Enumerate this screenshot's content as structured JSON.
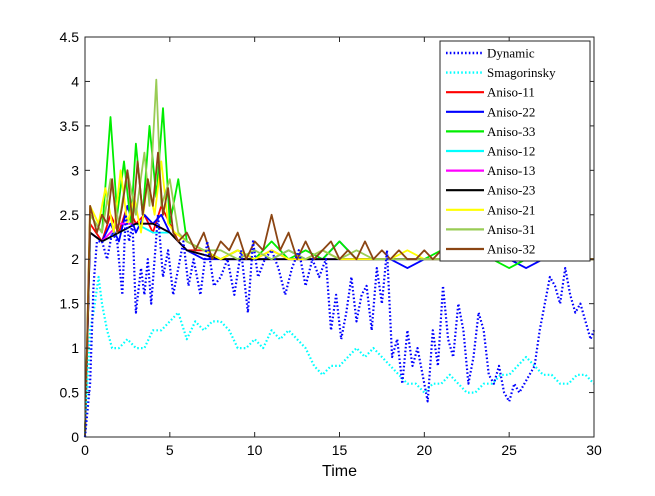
{
  "chart_data": {
    "type": "line",
    "title": "",
    "xlabel": "Time",
    "ylabel": "",
    "xlim": [
      0,
      30
    ],
    "ylim": [
      0,
      4.5
    ],
    "x_ticks": [
      "0",
      "5",
      "10",
      "15",
      "20",
      "25",
      "30"
    ],
    "y_ticks": [
      "0",
      "0.5",
      "1",
      "1.5",
      "2",
      "2.5",
      "3",
      "3.5",
      "4",
      "4.5"
    ],
    "grid": false,
    "legend_position": "top-right",
    "series": [
      {
        "name": "Dynamic",
        "color": "#0000ff",
        "style": "dotted",
        "x": [
          0,
          0.3,
          0.5,
          0.7,
          1,
          1.3,
          1.6,
          1.9,
          2.2,
          2.4,
          2.6,
          2.8,
          3,
          3.3,
          3.5,
          3.7,
          3.9,
          4.1,
          4.3,
          4.6,
          4.9,
          5.2,
          5.5,
          5.8,
          6.1,
          6.4,
          6.8,
          7.2,
          7.6,
          8,
          8.4,
          8.8,
          9.2,
          9.6,
          9.9,
          10.2,
          10.6,
          11,
          11.4,
          11.8,
          12.2,
          12.6,
          13,
          13.4,
          13.8,
          14.2,
          14.5,
          14.8,
          15.1,
          15.4,
          15.7,
          16,
          16.3,
          16.6,
          16.9,
          17.2,
          17.5,
          17.8,
          18.1,
          18.4,
          18.7,
          19,
          19.3,
          19.6,
          19.9,
          20.2,
          20.5,
          20.8,
          21.1,
          21.4,
          21.7,
          22,
          22.3,
          22.6,
          22.9,
          23.2,
          23.5,
          23.8,
          24.1,
          24.4,
          24.7,
          25,
          25.3,
          25.6,
          25.9,
          26.2,
          26.5,
          26.8,
          27.1,
          27.4,
          27.7,
          28,
          28.3,
          28.6,
          28.9,
          29.2,
          29.5,
          29.8,
          30
        ],
        "y": [
          0,
          0.6,
          1.7,
          2.2,
          2.2,
          2.0,
          2.3,
          2.2,
          1.6,
          2.5,
          2.2,
          2.4,
          1.4,
          1.9,
          1.6,
          2.0,
          1.5,
          2.0,
          2.5,
          1.8,
          2.1,
          1.6,
          1.9,
          2.2,
          1.7,
          2.0,
          1.6,
          2.2,
          1.7,
          1.8,
          2.0,
          1.6,
          2.1,
          1.4,
          2.2,
          1.8,
          2.0,
          2.1,
          1.9,
          1.6,
          1.9,
          2.1,
          1.7,
          2.0,
          1.8,
          2.0,
          1.2,
          1.6,
          1.1,
          1.4,
          1.8,
          1.3,
          1.6,
          1.7,
          1.2,
          1.9,
          1.5,
          2.1,
          0.9,
          1.1,
          0.6,
          1.2,
          0.8,
          1.0,
          0.7,
          0.4,
          1.2,
          0.8,
          1.7,
          1.1,
          0.9,
          1.5,
          1.2,
          0.6,
          0.9,
          1.4,
          1.2,
          0.7,
          0.6,
          0.8,
          0.5,
          0.4,
          0.6,
          0.5,
          0.6,
          0.7,
          0.8,
          1.2,
          1.5,
          1.8,
          1.7,
          1.5,
          1.9,
          1.6,
          1.4,
          1.5,
          1.3,
          1.1,
          1.2
        ]
      },
      {
        "name": "Smagorinsky",
        "color": "#00ffff",
        "style": "dotted",
        "x": [
          0,
          0.3,
          0.5,
          0.8,
          1,
          1.3,
          1.6,
          2,
          2.5,
          3,
          3.5,
          4,
          4.5,
          5,
          5.5,
          6,
          6.5,
          7,
          7.5,
          8,
          8.5,
          9,
          9.5,
          10,
          10.5,
          11,
          11.5,
          12,
          12.5,
          13,
          13.5,
          14,
          14.5,
          15,
          15.5,
          16,
          16.5,
          17,
          17.5,
          18,
          18.5,
          19,
          19.5,
          20,
          20.5,
          21,
          21.5,
          22,
          22.5,
          23,
          23.5,
          24,
          24.5,
          25,
          25.5,
          26,
          26.5,
          27,
          27.5,
          28,
          28.5,
          29,
          29.5,
          30
        ],
        "y": [
          0,
          1.2,
          1.4,
          1.8,
          1.5,
          1.2,
          1.0,
          1.0,
          1.1,
          1.0,
          1.0,
          1.2,
          1.2,
          1.3,
          1.4,
          1.1,
          1.3,
          1.2,
          1.3,
          1.3,
          1.2,
          1.0,
          1.0,
          1.1,
          1.0,
          1.2,
          1.1,
          1.2,
          1.1,
          1.0,
          0.8,
          0.7,
          0.8,
          0.8,
          0.9,
          1.0,
          0.9,
          1.0,
          0.9,
          0.8,
          0.7,
          0.6,
          0.6,
          0.5,
          0.6,
          0.6,
          0.7,
          0.6,
          0.5,
          0.5,
          0.6,
          0.6,
          0.7,
          0.7,
          0.8,
          0.9,
          0.8,
          0.7,
          0.7,
          0.6,
          0.6,
          0.7,
          0.7,
          0.6
        ]
      },
      {
        "name": "Aniso-11",
        "color": "#ff0000",
        "style": "solid",
        "x": [
          0,
          0.3,
          1,
          1.5,
          2,
          2.5,
          3,
          3.5,
          4,
          4.5,
          5,
          5.5,
          6,
          7,
          8,
          9,
          10,
          11,
          12,
          13,
          14,
          15,
          16,
          17,
          18,
          19,
          20,
          21,
          22,
          23,
          24,
          25,
          26,
          27,
          28,
          29,
          30
        ],
        "y": [
          0,
          2.4,
          2.2,
          2.5,
          2.3,
          2.6,
          2.4,
          2.5,
          2.3,
          2.6,
          2.4,
          2.2,
          2.1,
          2.1,
          2.0,
          2.1,
          2.0,
          2.1,
          2.0,
          2.0,
          2.1,
          2.0,
          2.0,
          2.0,
          2.0,
          2.0,
          2.0,
          2.0,
          2.0,
          2.0,
          2.0,
          2.0,
          2.0,
          2.0,
          2.0,
          2.0,
          2.0
        ]
      },
      {
        "name": "Aniso-22",
        "color": "#0000ff",
        "style": "solid",
        "x": [
          0,
          0.3,
          1,
          1.5,
          2,
          2.5,
          3,
          3.5,
          4,
          4.5,
          5,
          5.5,
          6,
          7,
          8,
          9,
          10,
          11,
          12,
          13,
          14,
          15,
          16,
          17,
          18,
          19,
          20,
          21,
          22,
          23,
          24,
          25,
          26,
          27,
          28,
          29,
          30
        ],
        "y": [
          0,
          2.3,
          2.2,
          2.4,
          2.2,
          2.6,
          2.3,
          2.5,
          2.4,
          2.5,
          2.3,
          2.2,
          2.1,
          2.0,
          2.0,
          2.0,
          2.0,
          2.0,
          2.1,
          2.0,
          2.0,
          2.2,
          2.0,
          2.0,
          2.0,
          1.9,
          2.0,
          2.0,
          2.0,
          2.0,
          2.0,
          2.0,
          1.9,
          2.0,
          2.0,
          2.0,
          2.0
        ]
      },
      {
        "name": "Aniso-33",
        "color": "#00ee00",
        "style": "solid",
        "x": [
          0,
          0.3,
          1,
          1.5,
          1.9,
          2.3,
          2.7,
          3,
          3.4,
          3.8,
          4.2,
          4.6,
          5,
          5.5,
          6,
          7,
          8,
          9,
          10,
          11,
          12,
          13,
          14,
          15,
          16,
          17,
          18,
          19,
          20,
          21,
          22,
          23,
          24,
          25,
          26,
          27,
          28,
          29,
          30
        ],
        "y": [
          0,
          2.5,
          2.3,
          3.6,
          2.5,
          3.1,
          2.4,
          3.3,
          2.5,
          3.5,
          2.7,
          3.7,
          2.4,
          2.9,
          2.2,
          2.1,
          2.0,
          2.1,
          2.0,
          2.2,
          2.0,
          2.1,
          2.0,
          2.2,
          2.0,
          2.0,
          2.0,
          2.0,
          2.0,
          2.1,
          2.0,
          2.0,
          2.0,
          1.9,
          2.0,
          2.0,
          2.0,
          2.0,
          2.0
        ]
      },
      {
        "name": "Aniso-12",
        "color": "#00ffff",
        "style": "solid",
        "x": [
          0,
          0.3,
          1,
          2,
          3,
          4,
          5,
          6,
          8,
          10,
          12,
          14,
          16,
          18,
          20,
          22,
          24,
          26,
          28,
          30
        ],
        "y": [
          0,
          2.3,
          2.2,
          2.3,
          2.4,
          2.3,
          2.3,
          2.1,
          2.0,
          2.0,
          2.0,
          2.0,
          2.0,
          2.0,
          2.0,
          2.0,
          2.0,
          2.0,
          2.0,
          2.0
        ]
      },
      {
        "name": "Aniso-13",
        "color": "#ff00ff",
        "style": "solid",
        "x": [
          0,
          0.3,
          1,
          2,
          3,
          4,
          5,
          6,
          8,
          10,
          12,
          14,
          16,
          18,
          20,
          22,
          24,
          26,
          28,
          30
        ],
        "y": [
          0,
          2.3,
          2.2,
          2.4,
          2.4,
          2.4,
          2.3,
          2.1,
          2.0,
          2.0,
          2.0,
          2.0,
          2.0,
          2.0,
          2.0,
          2.0,
          2.0,
          2.0,
          2.0,
          2.0
        ]
      },
      {
        "name": "Aniso-23",
        "color": "#000000",
        "style": "solid",
        "x": [
          0,
          0.3,
          1,
          2,
          3,
          4,
          5,
          6,
          8,
          10,
          12,
          14,
          16,
          18,
          20,
          22,
          24,
          26,
          28,
          30
        ],
        "y": [
          0,
          2.3,
          2.2,
          2.3,
          2.4,
          2.4,
          2.3,
          2.1,
          2.0,
          2.0,
          2.0,
          2.0,
          2.0,
          2.0,
          2.0,
          2.0,
          2.0,
          2.0,
          2.0,
          2.0
        ]
      },
      {
        "name": "Aniso-21",
        "color": "#ffff00",
        "style": "solid",
        "x": [
          0,
          0.3,
          0.8,
          1.2,
          1.7,
          2.1,
          2.5,
          2.9,
          3.3,
          3.7,
          4.1,
          4.5,
          4.9,
          5.3,
          6,
          7,
          8,
          9,
          10,
          11,
          12,
          13,
          14,
          15,
          16,
          17,
          18,
          19,
          20,
          21,
          22,
          23,
          24,
          25,
          26,
          27,
          28,
          29,
          30
        ],
        "y": [
          0,
          2.6,
          2.4,
          2.8,
          2.3,
          3.0,
          2.4,
          2.7,
          2.3,
          2.9,
          2.5,
          3.1,
          2.4,
          2.3,
          2.2,
          2.1,
          2.0,
          2.1,
          2.0,
          2.1,
          2.0,
          2.0,
          2.1,
          2.0,
          2.0,
          2.0,
          2.0,
          2.1,
          2.0,
          2.0,
          2.0,
          2.0,
          2.0,
          2.0,
          2.0,
          2.0,
          2.0,
          2.0,
          2.0
        ]
      },
      {
        "name": "Aniso-31",
        "color": "#99cc55",
        "style": "solid",
        "x": [
          0,
          0.3,
          1,
          1.5,
          2,
          2.5,
          3,
          3.5,
          3.8,
          4.2,
          4.5,
          5,
          5.5,
          6,
          7,
          8,
          9,
          10,
          11,
          12,
          13,
          14,
          15,
          16,
          17,
          18,
          19,
          20,
          21,
          22,
          23,
          24,
          25,
          26,
          27,
          28,
          29,
          30
        ],
        "y": [
          0,
          2.5,
          2.3,
          2.9,
          2.4,
          3.0,
          2.5,
          3.2,
          2.6,
          4.02,
          2.6,
          2.9,
          2.3,
          2.2,
          2.1,
          2.1,
          2.0,
          2.1,
          2.0,
          2.1,
          2.0,
          2.1,
          2.0,
          2.1,
          2.0,
          2.0,
          2.0,
          2.0,
          2.0,
          2.0,
          2.0,
          2.0,
          2.0,
          2.0,
          2.0,
          2.0,
          2.0,
          2.0
        ]
      },
      {
        "name": "Aniso-32",
        "color": "#8b4513",
        "style": "solid",
        "x": [
          0,
          0.3,
          0.7,
          1,
          1.3,
          1.6,
          1.9,
          2.2,
          2.5,
          2.8,
          3.1,
          3.4,
          3.7,
          4,
          4.3,
          4.6,
          4.9,
          5.2,
          5.5,
          6,
          6.5,
          7,
          7.5,
          8,
          8.5,
          9,
          9.5,
          10,
          10.5,
          11,
          11.5,
          12,
          12.5,
          13,
          13.5,
          14,
          14.5,
          15,
          15.5,
          16,
          16.5,
          17,
          17.5,
          18,
          18.5,
          19,
          19.5,
          20,
          20.5,
          21,
          21.5,
          22,
          22.5,
          23,
          23.5,
          24,
          24.5,
          25,
          25.5,
          26,
          26.5,
          27,
          27.5,
          28,
          28.5,
          29,
          29.5,
          30
        ],
        "y": [
          0,
          2.6,
          2.3,
          2.5,
          2.4,
          2.9,
          2.3,
          2.6,
          3.0,
          2.4,
          3.1,
          2.5,
          2.9,
          2.6,
          3.2,
          2.5,
          2.8,
          2.3,
          2.2,
          2.3,
          2.1,
          2.3,
          2.0,
          2.2,
          2.1,
          2.3,
          2.0,
          2.2,
          2.1,
          2.5,
          2.1,
          2.3,
          2.0,
          2.2,
          2.0,
          2.1,
          2.2,
          2.0,
          2.1,
          2.0,
          2.2,
          2.0,
          2.1,
          2.0,
          2.1,
          2.0,
          2.0,
          2.1,
          2.0,
          2.1,
          2.0,
          2.0,
          2.1,
          2.0,
          2.0,
          2.1,
          2.0,
          2.0,
          2.0,
          2.1,
          2.0,
          2.0,
          2.0,
          2.0,
          2.0,
          2.0,
          2.0,
          2.0
        ]
      }
    ]
  }
}
